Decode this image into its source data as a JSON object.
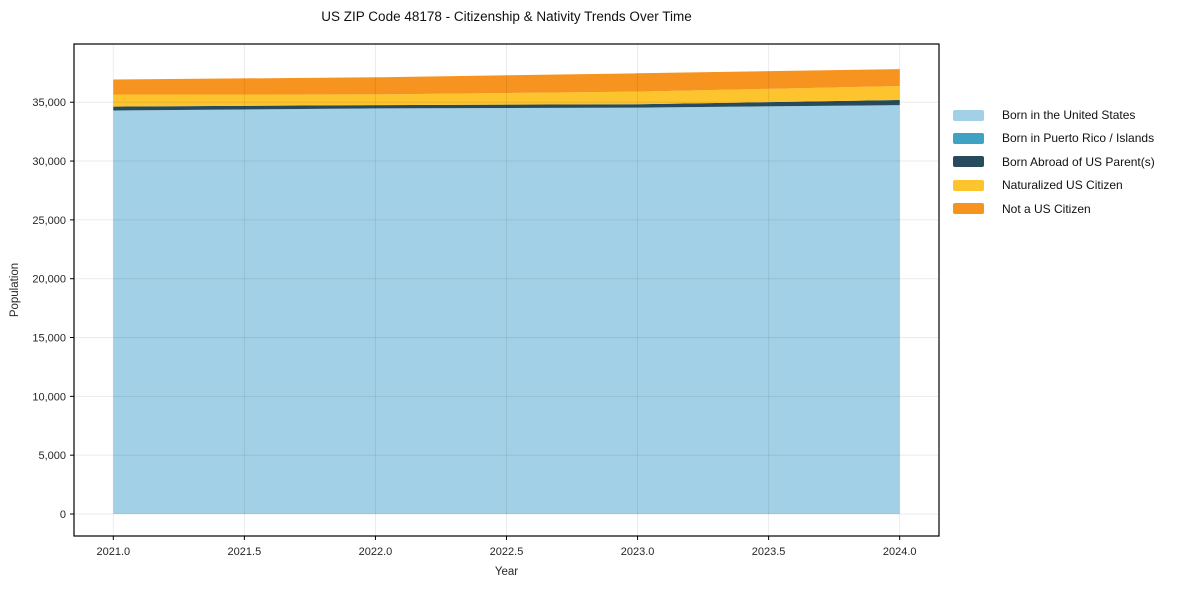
{
  "chart_data": {
    "type": "area",
    "stacked": true,
    "title": "US ZIP Code 48178 - Citizenship & Nativity Trends Over Time",
    "xlabel": "Year",
    "ylabel": "Population",
    "x": [
      2021,
      2022,
      2023,
      2024
    ],
    "series": [
      {
        "name": "Born in the United States",
        "color": "#A2D1E7",
        "values": [
          34300,
          34480,
          34540,
          34760
        ]
      },
      {
        "name": "Born in Puerto Rico / Islands",
        "color": "#3FA2C2",
        "values": [
          0,
          0,
          0,
          0
        ]
      },
      {
        "name": "Born Abroad of US Parent(s)",
        "color": "#264B5D",
        "values": [
          330,
          280,
          290,
          430
        ]
      },
      {
        "name": "Naturalized US Citizen",
        "color": "#FDC42D",
        "values": [
          1030,
          910,
          1070,
          1190
        ]
      },
      {
        "name": "Not a US Citizen",
        "color": "#F7941F",
        "values": [
          1270,
          1450,
          1560,
          1440
        ]
      }
    ],
    "xlim": [
      2020.85,
      2024.15
    ],
    "ylim": [
      -1870,
      39950
    ],
    "x_ticks": {
      "values": [
        2021.0,
        2021.5,
        2022.0,
        2022.5,
        2023.0,
        2023.5,
        2024.0
      ],
      "labels": [
        "2021.0",
        "2021.5",
        "2022.0",
        "2022.5",
        "2023.0",
        "2023.5",
        "2024.0"
      ]
    },
    "y_ticks": {
      "values": [
        0,
        5000,
        10000,
        15000,
        20000,
        25000,
        30000,
        35000
      ],
      "labels": [
        "0",
        "5,000",
        "10,000",
        "15,000",
        "20,000",
        "25,000",
        "30,000",
        "35,000"
      ]
    },
    "grid": true,
    "legend_position": "right-outside",
    "frame_color": "#000000",
    "grid_color": "rgba(0,0,0,0.08)",
    "tick_color": "#262626"
  }
}
